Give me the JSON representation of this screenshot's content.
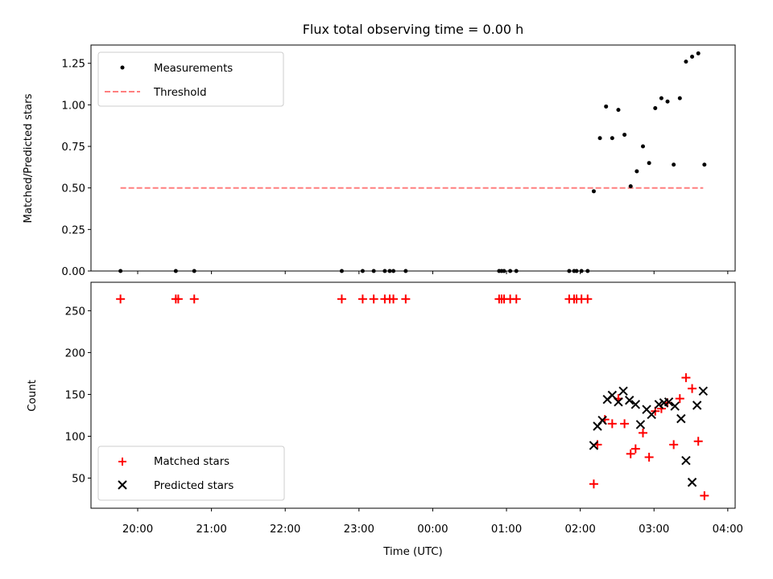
{
  "chart_data": [
    {
      "type": "scatter",
      "title": "Flux total observing time = 0.00 h",
      "xlabel": "",
      "ylabel": "Matched/Predicted stars",
      "ylim": [
        0,
        1.36
      ],
      "yticks": [
        "0.00",
        "0.25",
        "0.50",
        "0.75",
        "1.00",
        "1.25"
      ],
      "ytick_values": [
        0,
        0.25,
        0.5,
        0.75,
        1.0,
        1.25
      ],
      "xlim": [
        "19:22",
        "04:06"
      ],
      "grid": false,
      "legend_position": "top-left",
      "threshold": {
        "name": "Threshold",
        "value": 0.5,
        "x_start": "19:46",
        "x_end": "03:40",
        "color": "#ff7f7f",
        "style": "dashed"
      },
      "series": [
        {
          "name": "Measurements",
          "color": "#000000",
          "marker": "dot",
          "x": [
            "19:46",
            "20:31",
            "20:46",
            "22:46",
            "23:03",
            "23:12",
            "23:21",
            "23:25",
            "23:28",
            "23:38",
            "00:54",
            "00:56",
            "00:58",
            "01:03",
            "01:08",
            "01:51",
            "01:55",
            "01:57",
            "02:01",
            "02:06",
            "02:11",
            "02:16",
            "02:21",
            "02:26",
            "02:31",
            "02:36",
            "02:41",
            "02:46",
            "02:51",
            "02:56",
            "03:01",
            "03:06",
            "03:11",
            "03:16",
            "03:21",
            "03:26",
            "03:31",
            "03:36",
            "03:41"
          ],
          "y": [
            0,
            0,
            0,
            0,
            0,
            0,
            0,
            0,
            0,
            0,
            0,
            0,
            0,
            0,
            0,
            0,
            0,
            0,
            0,
            0,
            0.48,
            0.8,
            0.99,
            0.8,
            0.97,
            0.82,
            0.51,
            0.6,
            0.75,
            0.65,
            0.98,
            1.04,
            1.02,
            0.64,
            1.04,
            1.26,
            1.29,
            1.31,
            0.64
          ]
        }
      ]
    },
    {
      "type": "scatter",
      "title": "",
      "xlabel": "Time (UTC)",
      "ylabel": "Count",
      "ylim": [
        14,
        284
      ],
      "yticks": [
        "50",
        "100",
        "150",
        "200",
        "250"
      ],
      "ytick_values": [
        50,
        100,
        150,
        200,
        250
      ],
      "xlim": [
        "19:22",
        "04:06"
      ],
      "xticks": [
        "20:00",
        "21:00",
        "22:00",
        "23:00",
        "00:00",
        "01:00",
        "02:00",
        "03:00",
        "04:00"
      ],
      "grid": false,
      "legend_position": "bottom-left",
      "series": [
        {
          "name": "Matched stars",
          "color": "#ff0000",
          "marker": "plus",
          "x": [
            "19:46",
            "20:31",
            "20:33",
            "20:46",
            "22:46",
            "23:03",
            "23:12",
            "23:21",
            "23:25",
            "23:28",
            "23:38",
            "00:54",
            "00:56",
            "00:58",
            "01:03",
            "01:08",
            "01:51",
            "01:55",
            "01:57",
            "02:01",
            "02:06",
            "02:11",
            "02:14",
            "02:20",
            "02:26",
            "02:31",
            "02:36",
            "02:41",
            "02:45",
            "02:51",
            "02:56",
            "03:01",
            "03:06",
            "03:11",
            "03:16",
            "03:21",
            "03:26",
            "03:31",
            "03:36",
            "03:41"
          ],
          "y": [
            264,
            264,
            264,
            264,
            264,
            264,
            264,
            264,
            264,
            264,
            264,
            264,
            264,
            264,
            264,
            264,
            264,
            264,
            264,
            264,
            264,
            43,
            90,
            120,
            115,
            145,
            115,
            79,
            85,
            104,
            75,
            130,
            133,
            140,
            90,
            145,
            170,
            157,
            94,
            29
          ]
        },
        {
          "name": "Predicted stars",
          "color": "#000000",
          "marker": "x",
          "x": [
            "02:11",
            "02:14",
            "02:18",
            "02:22",
            "02:26",
            "02:31",
            "02:35",
            "02:40",
            "02:45",
            "02:49",
            "02:54",
            "02:58",
            "03:04",
            "03:08",
            "03:12",
            "03:17",
            "03:22",
            "03:26",
            "03:31",
            "03:35",
            "03:40"
          ],
          "y": [
            89,
            112,
            119,
            144,
            149,
            141,
            154,
            143,
            138,
            114,
            132,
            126,
            138,
            140,
            141,
            136,
            121,
            71,
            45,
            137,
            154
          ]
        }
      ]
    }
  ]
}
